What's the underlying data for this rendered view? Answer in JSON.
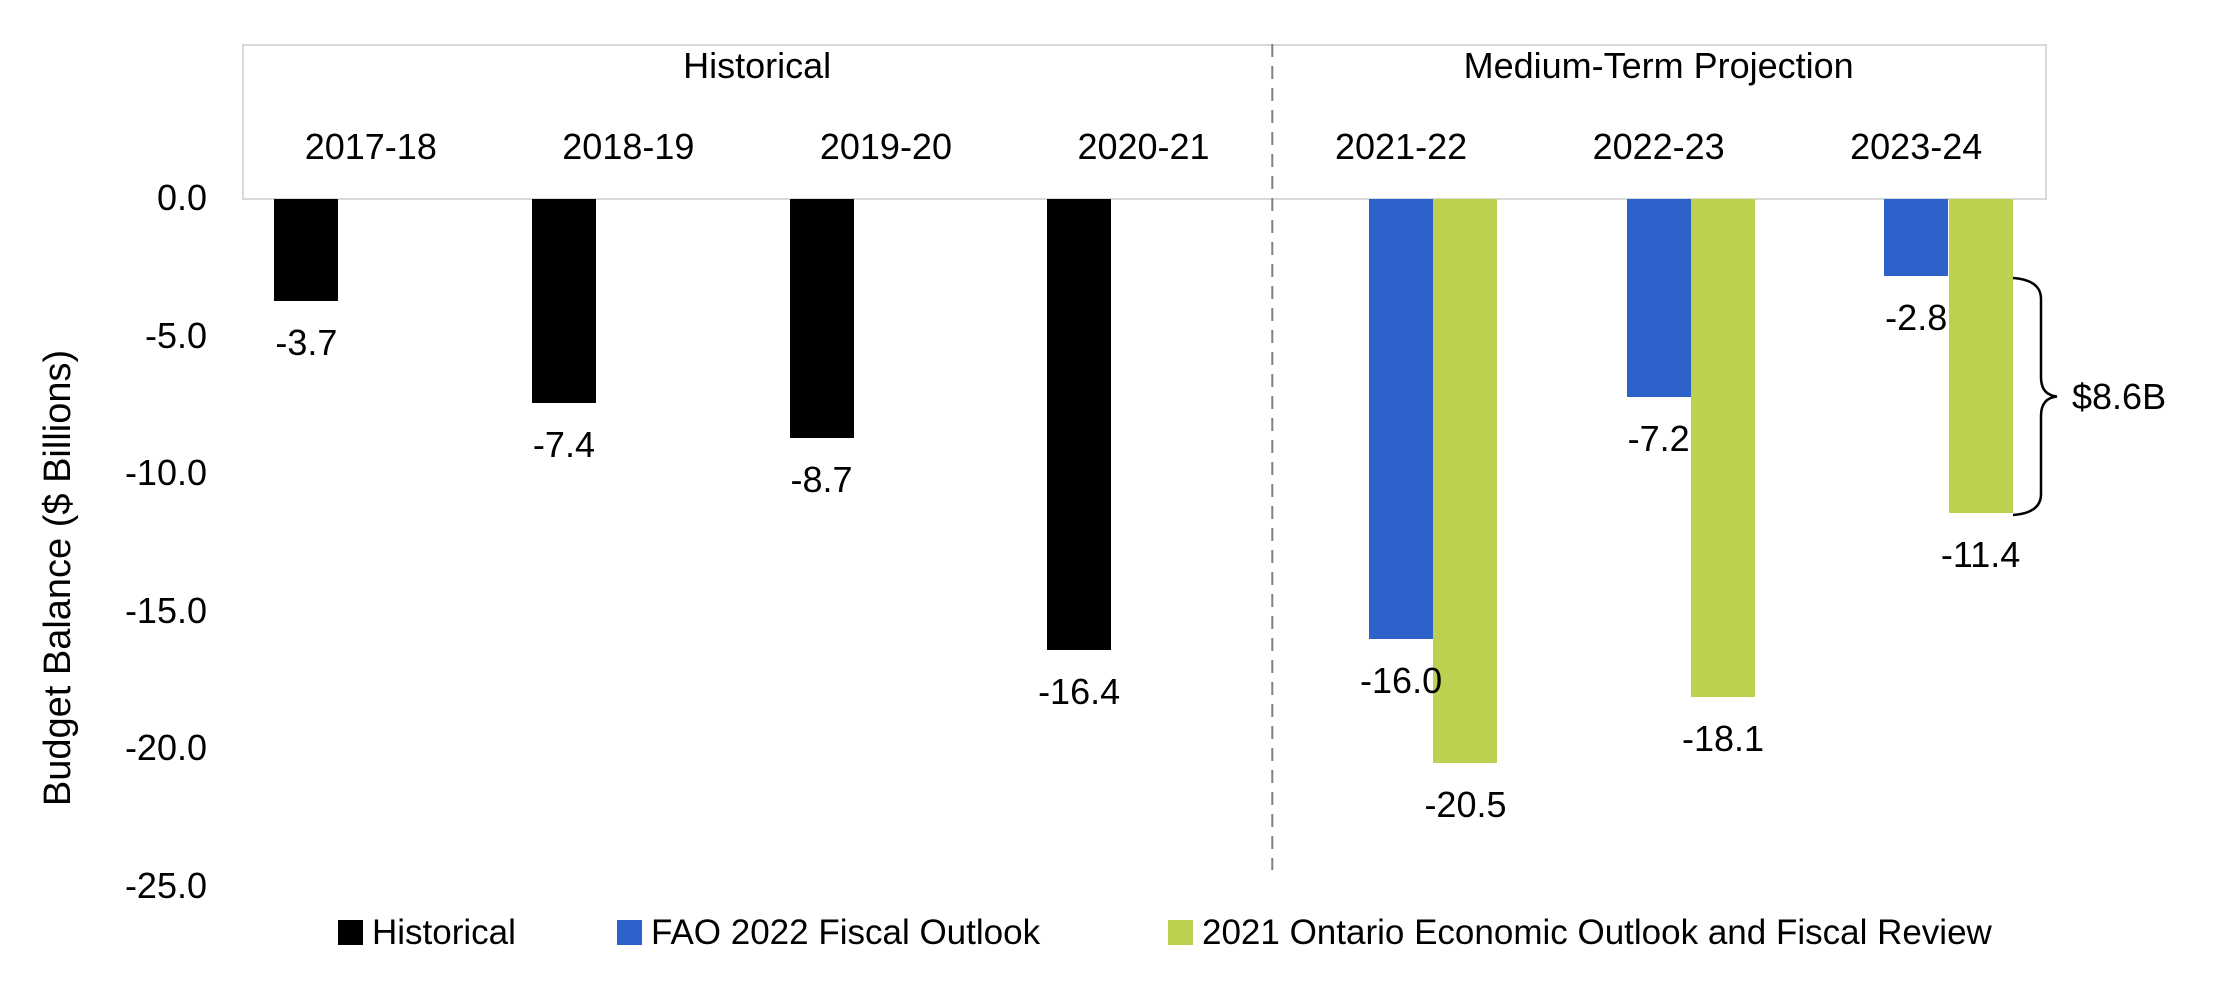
{
  "chart_data": {
    "type": "bar",
    "title": "",
    "ylabel": "Budget Balance ($ Billions)",
    "ylim": [
      -25,
      0
    ],
    "ytick_values": [
      0,
      -5,
      -10,
      -15,
      -20,
      -25
    ],
    "ytick_labels": [
      "0.0",
      "-5.0",
      "-10.0",
      "-15.0",
      "-20.0",
      "-25.0"
    ],
    "categories": [
      "2017-18",
      "2018-19",
      "2019-20",
      "2020-21",
      "2021-22",
      "2022-23",
      "2023-24"
    ],
    "sections": [
      {
        "label": "Historical",
        "category_count": 4
      },
      {
        "label": "Medium-Term Projection",
        "category_count": 3
      }
    ],
    "series": [
      {
        "name": "Historical",
        "color": "#000000",
        "slot": 0,
        "values": [
          -3.7,
          -7.4,
          -8.7,
          -16.4,
          null,
          null,
          null
        ]
      },
      {
        "name": "FAO 2022 Fiscal Outlook",
        "color": "#2D62CB",
        "slot": 1,
        "values": [
          null,
          null,
          null,
          null,
          -16.0,
          -7.2,
          -2.8
        ]
      },
      {
        "name": "2021 Ontario Economic Outlook and Fiscal Review",
        "color": "#BCD14F",
        "slot": 2,
        "values": [
          null,
          null,
          null,
          null,
          -20.5,
          -18.1,
          -11.4
        ]
      }
    ],
    "data_label_format": "one_decimal",
    "annotation": {
      "text": "$8.6B",
      "from_value": -2.8,
      "to_value": -11.4,
      "category": "2023-24"
    },
    "legend_position": "bottom",
    "grid": false,
    "divider_after_category": "2020-21",
    "colors": {
      "axis_box": "#D9D9D9",
      "divider": "#808080",
      "text": "#000000",
      "background": "#FFFFFF"
    }
  }
}
